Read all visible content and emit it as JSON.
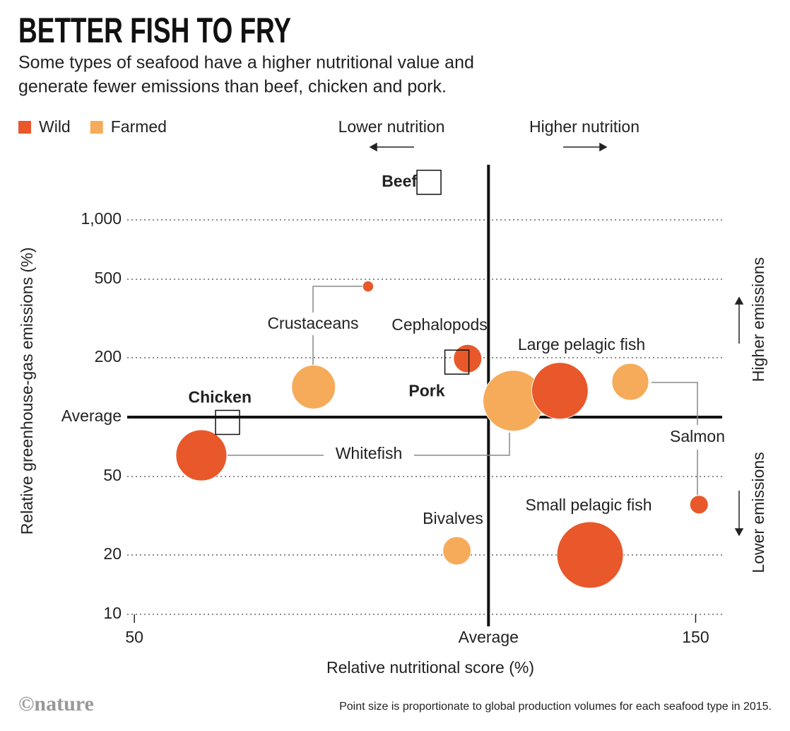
{
  "chart_data": {
    "type": "scatter",
    "title": "BETTER FISH TO FRY",
    "subtitle": [
      "Some types of seafood have a higher nutritional value and",
      "generate fewer emissions than beef, chicken and pork."
    ],
    "x_label": "Relative nutritional score (%)",
    "y_label": "Relative greenhouse-gas emissions (%)",
    "x_directions": [
      "Lower nutrition",
      "Higher nutrition"
    ],
    "y_directions": [
      "Higher emissions",
      "Lower emissions"
    ],
    "x_scale": "log",
    "y_scale": "log",
    "xlim": [
      49.3,
      158
    ],
    "ylim": [
      10,
      2000
    ],
    "xticks": [
      50,
      {
        "value": 100,
        "label": "Average"
      },
      150
    ],
    "yticks": [
      10,
      20,
      50,
      {
        "value": 100,
        "label": "Average"
      },
      200,
      500,
      {
        "value": 1000,
        "label": "1,000"
      }
    ],
    "grid": true,
    "legend": "top-left",
    "series": [
      {
        "name": "Wild",
        "color": "#e8582a",
        "x": [
          79,
          96,
          115,
          57,
          151,
          122
        ],
        "values": [
          460,
          198,
          136,
          64,
          36,
          20
        ],
        "sizes": [
          6,
          40,
          160,
          130,
          17,
          221
        ]
      },
      {
        "name": "Farmed",
        "color": "#f6ab5a",
        "x": [
          71,
          105,
          132,
          94
        ],
        "values": [
          142,
          121,
          151,
          21
        ],
        "sizes": [
          96,
          185,
          68,
          40
        ]
      }
    ],
    "references": {
      "labels": [
        "Beef",
        "Pork",
        "Chicken"
      ],
      "x": [
        89,
        94,
        60
      ],
      "values": [
        1550,
        190,
        94
      ]
    },
    "annotations": [
      "Crustaceans",
      "Cephalopods",
      "Large pelagic fish",
      "Whitefish",
      "Salmon",
      "Small pelagic fish",
      "Bivalves"
    ],
    "note": "Point size is proportionate to global production volumes for each seafood type in 2015.",
    "credit": "©nature"
  }
}
